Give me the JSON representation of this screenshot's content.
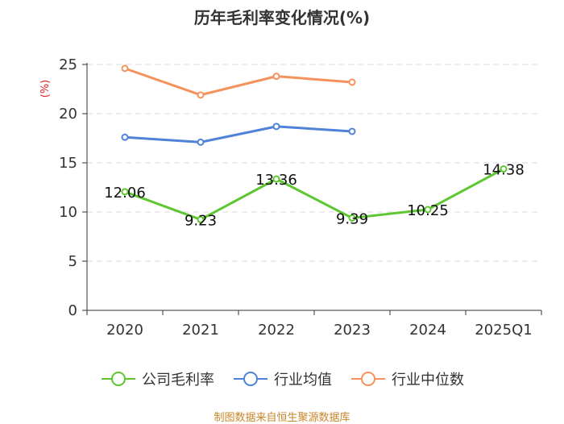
{
  "chart_data": {
    "type": "line",
    "title": "历年毛利率变化情况(%)",
    "ylabel": "(%)",
    "xlabel": "",
    "categories": [
      "2020",
      "2021",
      "2022",
      "2023",
      "2024",
      "2025Q1"
    ],
    "ylim": [
      0,
      25
    ],
    "yticks": [
      0,
      5,
      10,
      15,
      20,
      25
    ],
    "grid": true,
    "legend_position": "bottom",
    "series": [
      {
        "name": "公司毛利率",
        "color": "#5cc72e",
        "values": [
          12.06,
          9.23,
          13.36,
          9.39,
          10.25,
          14.38
        ],
        "labels": [
          "12.06",
          "9.23",
          "13.36",
          "9.39",
          "10.25",
          "14.38"
        ]
      },
      {
        "name": "行业均值",
        "color": "#4f82d8",
        "values": [
          17.6,
          17.1,
          18.7,
          18.2,
          null,
          null
        ]
      },
      {
        "name": "行业中位数",
        "color": "#f5925c",
        "values": [
          24.6,
          21.9,
          23.8,
          23.2,
          null,
          null
        ]
      }
    ]
  },
  "source_note": "制图数据来自恒生聚源数据库"
}
